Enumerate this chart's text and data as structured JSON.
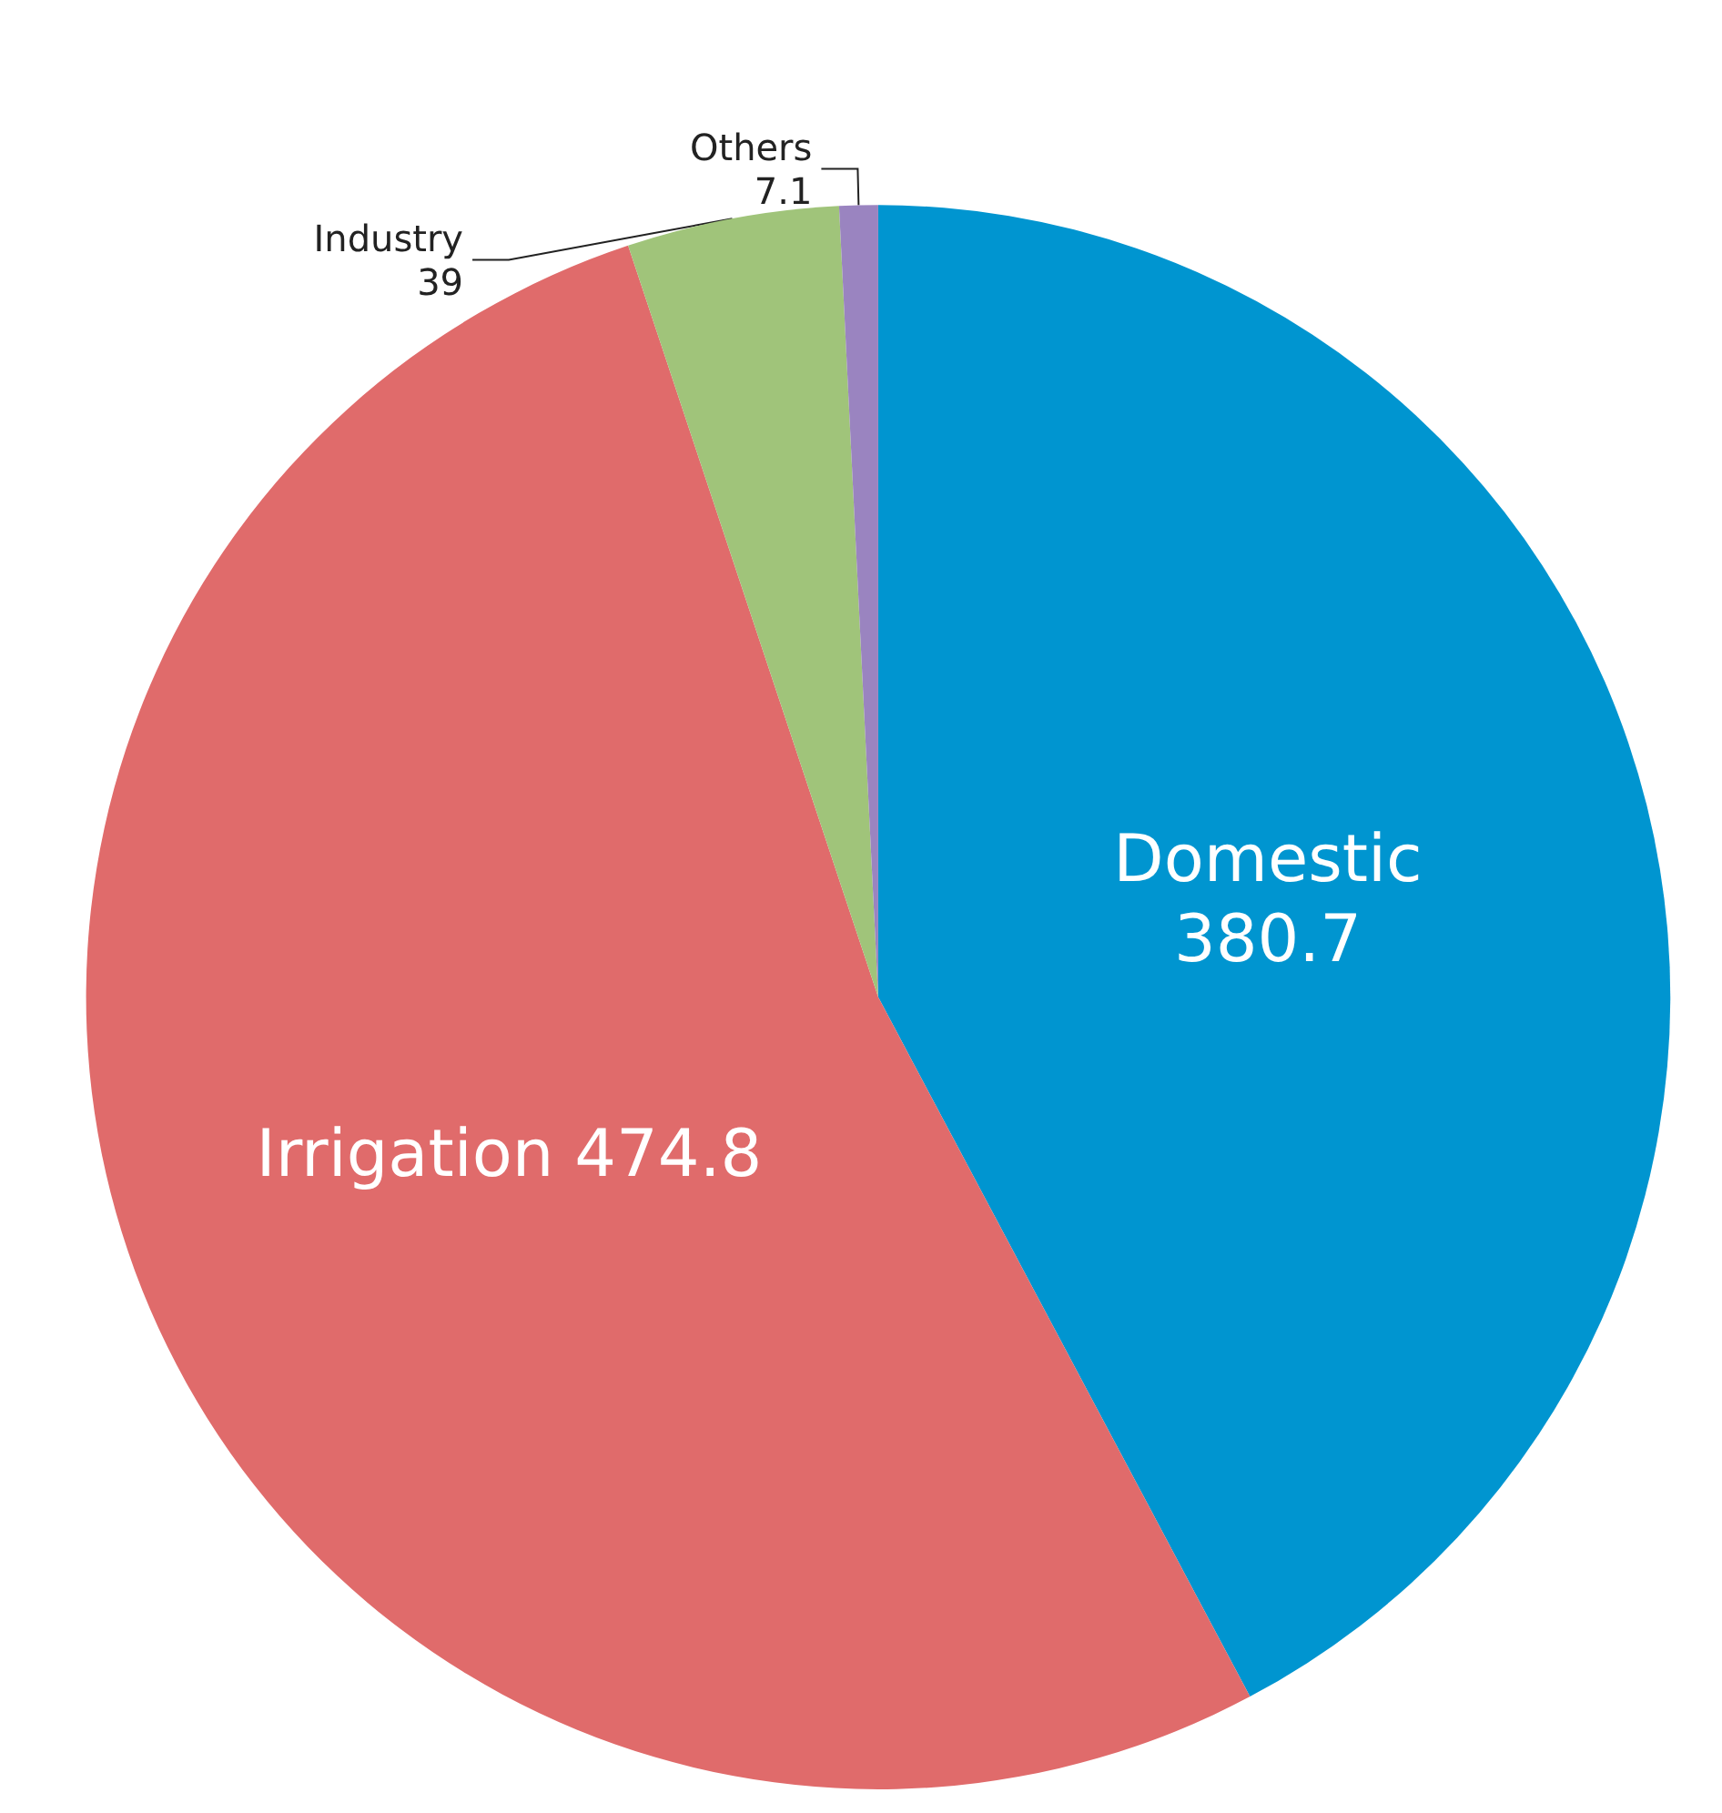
{
  "chart_data": {
    "type": "pie",
    "categories": [
      "Domestic",
      "Irrigation",
      "Industry",
      "Others"
    ],
    "values": [
      380.7,
      474.8,
      39,
      7.1
    ],
    "colors": [
      "#0095d0",
      "#e06b6b",
      "#a0c47a",
      "#9a84c0"
    ],
    "data_labels": true,
    "legend": false
  }
}
